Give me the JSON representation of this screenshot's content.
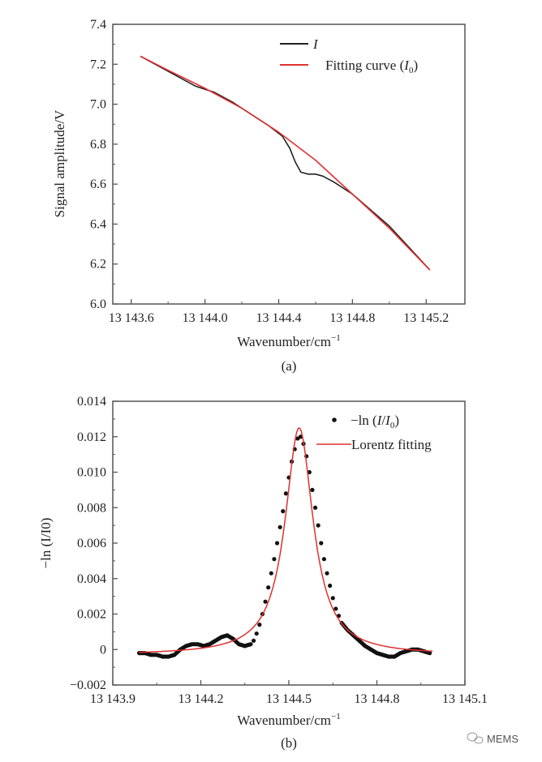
{
  "watermark": {
    "label": "MEMS",
    "icon": "wechat-icon"
  },
  "chart_data": [
    {
      "type": "line",
      "caption": "(a)",
      "xlabel": "Wavenumber/cm",
      "xlabel_sup": "−1",
      "ylabel": "Signal amplitude/V",
      "xlim": [
        13143.5,
        13145.41
      ],
      "ylim": [
        6.0,
        7.4
      ],
      "xticks": [
        13143.6,
        13144.0,
        13144.4,
        13144.8,
        13145.2
      ],
      "xtick_labels": [
        "13 143.6",
        "13 144.0",
        "13 144.4",
        "13 144.8",
        "13 145.2"
      ],
      "yticks": [
        6.0,
        6.2,
        6.4,
        6.6,
        6.8,
        7.0,
        7.2,
        7.4
      ],
      "ytick_labels": [
        "6.0",
        "6.2",
        "6.4",
        "6.6",
        "6.8",
        "7.0",
        "7.2",
        "7.4"
      ],
      "legend_position": "top-right",
      "series": [
        {
          "name": "I",
          "color": "#222222",
          "x": [
            13143.65,
            13143.75,
            13143.85,
            13143.95,
            13144.05,
            13144.15,
            13144.25,
            13144.35,
            13144.42,
            13144.46,
            13144.49,
            13144.52,
            13144.56,
            13144.6,
            13144.64,
            13144.7,
            13144.8,
            13144.9,
            13145.0,
            13145.1,
            13145.22
          ],
          "y": [
            7.24,
            7.19,
            7.14,
            7.09,
            7.06,
            7.01,
            6.95,
            6.89,
            6.84,
            6.78,
            6.71,
            6.66,
            6.65,
            6.65,
            6.64,
            6.61,
            6.55,
            6.47,
            6.39,
            6.29,
            6.17
          ]
        },
        {
          "name": "Fitting curve (I0)",
          "label_main": "Fitting curve (",
          "label_italic": "I",
          "label_sub": "0",
          "label_end": ")",
          "color": "#e03030",
          "x": [
            13143.65,
            13143.8,
            13144.0,
            13144.2,
            13144.4,
            13144.6,
            13144.8,
            13145.0,
            13145.22
          ],
          "y": [
            7.24,
            7.17,
            7.08,
            6.98,
            6.86,
            6.72,
            6.55,
            6.38,
            6.17
          ]
        }
      ]
    },
    {
      "type": "scatter",
      "caption": "(b)",
      "xlabel": "Wavenumber/cm",
      "xlabel_sup": "−1",
      "ylabel": "−ln (I/I0)",
      "xlim": [
        13143.9,
        13145.1
      ],
      "ylim": [
        -0.002,
        0.014
      ],
      "xticks": [
        13143.9,
        13144.2,
        13144.5,
        13144.8,
        13145.1
      ],
      "xtick_labels": [
        "13 143.9",
        "13 144.2",
        "13 144.5",
        "13 144.8",
        "13 145.1"
      ],
      "yticks": [
        -0.002,
        0,
        0.002,
        0.004,
        0.006,
        0.008,
        0.01,
        0.012,
        0.014
      ],
      "ytick_labels": [
        "−0.002",
        "0",
        "0.002",
        "0.004",
        "0.006",
        "0.008",
        "0.010",
        "0.012",
        "0.014"
      ],
      "legend_position": "top-right",
      "series": [
        {
          "name": "−ln (I/I0)",
          "legend_text": "−ln (",
          "color": "#111111",
          "marker": "dot",
          "x": [
            13143.99,
            13144.01,
            13144.03,
            13144.05,
            13144.07,
            13144.09,
            13144.11,
            13144.13,
            13144.15,
            13144.17,
            13144.19,
            13144.21,
            13144.23,
            13144.25,
            13144.27,
            13144.29,
            13144.31,
            13144.33,
            13144.35,
            13144.37,
            13144.38,
            13144.39,
            13144.4,
            13144.41,
            13144.42,
            13144.43,
            13144.44,
            13144.45,
            13144.46,
            13144.47,
            13144.48,
            13144.49,
            13144.5,
            13144.51,
            13144.52,
            13144.53,
            13144.54,
            13144.55,
            13144.56,
            13144.57,
            13144.58,
            13144.59,
            13144.6,
            13144.61,
            13144.62,
            13144.63,
            13144.64,
            13144.65,
            13144.66,
            13144.67,
            13144.68,
            13144.7,
            13144.72,
            13144.74,
            13144.76,
            13144.78,
            13144.8,
            13144.82,
            13144.84,
            13144.86,
            13144.88,
            13144.9,
            13144.92,
            13144.94,
            13144.96,
            13144.98
          ],
          "y": [
            -0.0002,
            -0.0002,
            -0.0003,
            -0.0003,
            -0.0004,
            -0.0004,
            -0.0003,
            0.0,
            0.0002,
            0.0003,
            0.0003,
            0.0002,
            0.0003,
            0.0005,
            0.0007,
            0.0008,
            0.0006,
            0.0003,
            0.0002,
            0.0003,
            0.0005,
            0.0009,
            0.0014,
            0.002,
            0.0027,
            0.0035,
            0.0043,
            0.0051,
            0.006,
            0.0069,
            0.0078,
            0.0088,
            0.0097,
            0.0106,
            0.0113,
            0.0119,
            0.012,
            0.0116,
            0.0109,
            0.01,
            0.009,
            0.008,
            0.007,
            0.006,
            0.0051,
            0.0043,
            0.0036,
            0.0029,
            0.0023,
            0.0019,
            0.0015,
            0.0011,
            0.0008,
            0.0005,
            0.0002,
            0.0,
            -0.0002,
            -0.0003,
            -0.0004,
            -0.0004,
            -0.0002,
            -0.0001,
            0.0,
            0.0,
            -0.0001,
            -0.0002
          ]
        },
        {
          "name": "Lorentz fitting",
          "color": "#e03030",
          "model": "lorentz",
          "center": 13144.535,
          "amplitude": 0.0128,
          "hwhm": 0.058,
          "offset": -0.0003,
          "x_range": [
            13143.99,
            13144.99
          ]
        }
      ]
    }
  ]
}
